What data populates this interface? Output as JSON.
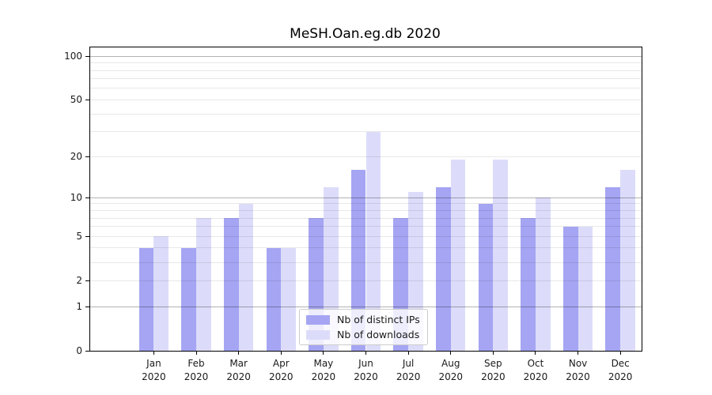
{
  "chart_data": {
    "type": "bar",
    "title": "MeSH.Oan.eg.db 2020",
    "x": {
      "categories": [
        "Jan",
        "Feb",
        "Mar",
        "Apr",
        "May",
        "Jun",
        "Jul",
        "Aug",
        "Sep",
        "Oct",
        "Nov",
        "Dec"
      ],
      "year": "2020"
    },
    "series": [
      {
        "name": "Nb of distinct IPs",
        "color": "#a5a5f3",
        "values": [
          4,
          4,
          7,
          4,
          7,
          16,
          7,
          12,
          9,
          7,
          6,
          12
        ]
      },
      {
        "name": "Nb of downloads",
        "color": "#dcdcfa",
        "values": [
          5,
          7,
          9,
          4,
          12,
          30,
          11,
          19,
          19,
          10,
          6,
          16
        ]
      }
    ],
    "yscale": "log1p",
    "ylim": [
      0,
      115
    ],
    "yticks": {
      "values": [
        0,
        1,
        2,
        5,
        10,
        20,
        50,
        100
      ],
      "labels": [
        "0",
        "1",
        "2",
        "5",
        "10",
        "20",
        "50",
        "100"
      ]
    },
    "grid": {
      "major": [
        1,
        10,
        100
      ],
      "minor": [
        2,
        3,
        4,
        5,
        6,
        7,
        8,
        9,
        20,
        30,
        40,
        50,
        60,
        70,
        80,
        90
      ]
    },
    "legend": {
      "position": "lower center"
    }
  },
  "colors": {
    "grid_major": "rgba(0,0,0,0.30)",
    "grid_minor": "rgba(0,0,0,0.09)",
    "spine": "#000000",
    "background": "#ffffff"
  }
}
